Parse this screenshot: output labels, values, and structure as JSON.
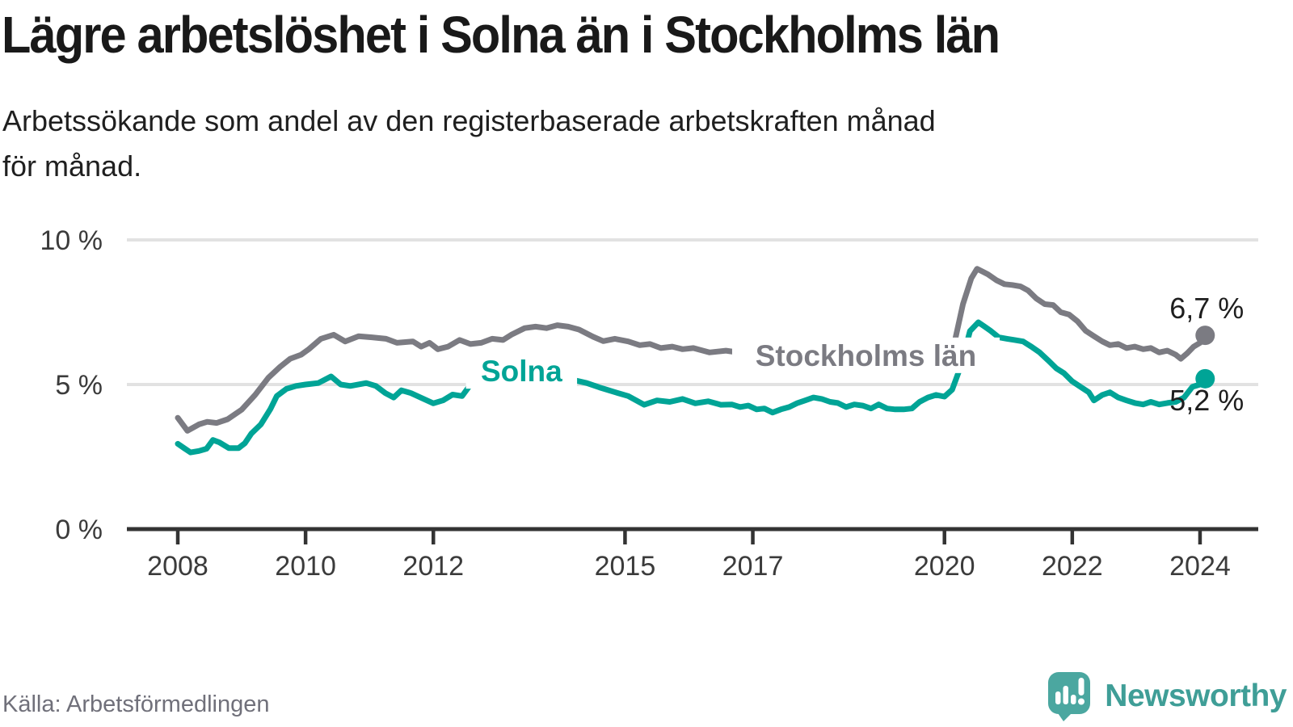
{
  "title": "Lägre arbetslöshet i Solna än i Stockholms län",
  "subtitle": {
    "line1": "Arbetssökande som andel av den registerbaserade arbetskraften månad",
    "line2": "för månad."
  },
  "source": "Källa: Arbetsförmedlingen",
  "branding": {
    "name": "Newsworthy",
    "logo_icon": "speech-bubble-bar-chart-icon",
    "logo_color": "#4BA7A0",
    "text_color": "#3F9E97"
  },
  "chart_data": {
    "type": "line",
    "title": "",
    "xlabel": "",
    "ylabel": "",
    "x_unit": "year (monthly data)",
    "xlim": [
      2007.2,
      2024.92
    ],
    "ylim": [
      0,
      10.5
    ],
    "grid": "horizontal",
    "axis_color": "#333333",
    "gridline_color": "#E2E2E2",
    "tick_label_color": "#3b3b3b",
    "value_label_color": "#1e1e1e",
    "x_ticks": [
      2008,
      2010,
      2012,
      2015,
      2017,
      2020,
      2022,
      2024
    ],
    "x_tick_labels": [
      "2008",
      "2010",
      "2012",
      "2015",
      "2017",
      "2020",
      "2022",
      "2024"
    ],
    "y_ticks": [
      {
        "value": 0,
        "label": "0 %"
      },
      {
        "value": 5,
        "label": "5 %"
      },
      {
        "value": 10,
        "label": "10 %"
      }
    ],
    "legend_position": "inline-labels-on-lines",
    "series": [
      {
        "name": "Stockholms län",
        "color": "#7B7B82",
        "end_value": 6.7,
        "end_label": "6,7 %",
        "end_label_position": "above",
        "label_anchor": {
          "x": 2018.77,
          "y": 6.01
        },
        "points": [
          [
            2008.0,
            3.85
          ],
          [
            2008.15,
            3.4
          ],
          [
            2008.33,
            3.62
          ],
          [
            2008.46,
            3.71
          ],
          [
            2008.61,
            3.67
          ],
          [
            2008.78,
            3.8
          ],
          [
            2009.0,
            4.13
          ],
          [
            2009.21,
            4.64
          ],
          [
            2009.42,
            5.24
          ],
          [
            2009.6,
            5.61
          ],
          [
            2009.76,
            5.89
          ],
          [
            2009.93,
            6.03
          ],
          [
            2010.05,
            6.22
          ],
          [
            2010.24,
            6.58
          ],
          [
            2010.44,
            6.72
          ],
          [
            2010.62,
            6.49
          ],
          [
            2010.83,
            6.67
          ],
          [
            2011.04,
            6.63
          ],
          [
            2011.26,
            6.58
          ],
          [
            2011.43,
            6.44
          ],
          [
            2011.68,
            6.49
          ],
          [
            2011.81,
            6.31
          ],
          [
            2011.94,
            6.44
          ],
          [
            2012.07,
            6.22
          ],
          [
            2012.23,
            6.31
          ],
          [
            2012.41,
            6.54
          ],
          [
            2012.58,
            6.4
          ],
          [
            2012.75,
            6.44
          ],
          [
            2012.92,
            6.58
          ],
          [
            2013.09,
            6.54
          ],
          [
            2013.22,
            6.72
          ],
          [
            2013.43,
            6.95
          ],
          [
            2013.6,
            7.0
          ],
          [
            2013.77,
            6.95
          ],
          [
            2013.94,
            7.05
          ],
          [
            2014.11,
            7.0
          ],
          [
            2014.28,
            6.9
          ],
          [
            2014.5,
            6.65
          ],
          [
            2014.66,
            6.5
          ],
          [
            2014.84,
            6.58
          ],
          [
            2015.05,
            6.49
          ],
          [
            2015.23,
            6.36
          ],
          [
            2015.39,
            6.4
          ],
          [
            2015.56,
            6.26
          ],
          [
            2015.74,
            6.31
          ],
          [
            2015.9,
            6.22
          ],
          [
            2016.07,
            6.26
          ],
          [
            2016.32,
            6.11
          ],
          [
            2016.58,
            6.17
          ],
          [
            2016.8,
            6.1
          ],
          [
            2017.0,
            6.05
          ],
          [
            2017.3,
            6.0
          ],
          [
            2017.6,
            5.95
          ],
          [
            2018.0,
            6.0
          ],
          [
            2018.4,
            6.05
          ],
          [
            2018.7,
            6.17
          ],
          [
            2019.0,
            6.1
          ],
          [
            2019.3,
            6.05
          ],
          [
            2019.6,
            6.1
          ],
          [
            2019.9,
            6.2
          ],
          [
            2020.16,
            6.49
          ],
          [
            2020.29,
            7.78
          ],
          [
            2020.42,
            8.67
          ],
          [
            2020.51,
            9.0
          ],
          [
            2020.6,
            8.9
          ],
          [
            2020.68,
            8.81
          ],
          [
            2020.81,
            8.61
          ],
          [
            2020.94,
            8.47
          ],
          [
            2021.06,
            8.44
          ],
          [
            2021.19,
            8.39
          ],
          [
            2021.31,
            8.25
          ],
          [
            2021.44,
            7.97
          ],
          [
            2021.57,
            7.78
          ],
          [
            2021.7,
            7.75
          ],
          [
            2021.82,
            7.5
          ],
          [
            2021.95,
            7.42
          ],
          [
            2022.08,
            7.19
          ],
          [
            2022.21,
            6.86
          ],
          [
            2022.34,
            6.67
          ],
          [
            2022.47,
            6.49
          ],
          [
            2022.59,
            6.36
          ],
          [
            2022.72,
            6.4
          ],
          [
            2022.85,
            6.26
          ],
          [
            2022.98,
            6.31
          ],
          [
            2023.11,
            6.22
          ],
          [
            2023.23,
            6.26
          ],
          [
            2023.36,
            6.11
          ],
          [
            2023.49,
            6.17
          ],
          [
            2023.62,
            6.03
          ],
          [
            2023.7,
            5.89
          ],
          [
            2023.8,
            6.08
          ],
          [
            2023.9,
            6.31
          ],
          [
            2024.0,
            6.44
          ],
          [
            2024.08,
            6.7
          ]
        ]
      },
      {
        "name": "Solna",
        "color": "#00A496",
        "end_value": 5.2,
        "end_label": "5,2 %",
        "end_label_position": "below",
        "label_anchor": {
          "x": 2013.38,
          "y": 5.47
        },
        "points": [
          [
            2008.0,
            2.95
          ],
          [
            2008.1,
            2.8
          ],
          [
            2008.2,
            2.65
          ],
          [
            2008.33,
            2.7
          ],
          [
            2008.45,
            2.78
          ],
          [
            2008.55,
            3.08
          ],
          [
            2008.65,
            3.0
          ],
          [
            2008.8,
            2.8
          ],
          [
            2008.95,
            2.8
          ],
          [
            2009.05,
            2.97
          ],
          [
            2009.15,
            3.3
          ],
          [
            2009.3,
            3.62
          ],
          [
            2009.45,
            4.15
          ],
          [
            2009.55,
            4.6
          ],
          [
            2009.7,
            4.85
          ],
          [
            2009.85,
            4.95
          ],
          [
            2010.0,
            5.0
          ],
          [
            2010.2,
            5.05
          ],
          [
            2010.4,
            5.28
          ],
          [
            2010.55,
            5.0
          ],
          [
            2010.7,
            4.95
          ],
          [
            2010.95,
            5.05
          ],
          [
            2011.1,
            4.95
          ],
          [
            2011.25,
            4.7
          ],
          [
            2011.38,
            4.55
          ],
          [
            2011.5,
            4.8
          ],
          [
            2011.65,
            4.7
          ],
          [
            2011.85,
            4.5
          ],
          [
            2012.0,
            4.35
          ],
          [
            2012.15,
            4.45
          ],
          [
            2012.3,
            4.65
          ],
          [
            2012.45,
            4.6
          ],
          [
            2012.55,
            4.9
          ],
          [
            2012.68,
            5.3
          ],
          [
            2012.85,
            5.35
          ],
          [
            2013.1,
            5.28
          ],
          [
            2013.35,
            5.4
          ],
          [
            2013.6,
            5.45
          ],
          [
            2013.85,
            5.38
          ],
          [
            2014.05,
            5.3
          ],
          [
            2014.2,
            5.15
          ],
          [
            2014.4,
            5.05
          ],
          [
            2014.6,
            4.9
          ],
          [
            2014.85,
            4.73
          ],
          [
            2015.05,
            4.6
          ],
          [
            2015.3,
            4.3
          ],
          [
            2015.5,
            4.45
          ],
          [
            2015.7,
            4.4
          ],
          [
            2015.9,
            4.5
          ],
          [
            2016.1,
            4.35
          ],
          [
            2016.3,
            4.42
          ],
          [
            2016.5,
            4.3
          ],
          [
            2016.67,
            4.31
          ],
          [
            2016.8,
            4.22
          ],
          [
            2016.93,
            4.27
          ],
          [
            2017.06,
            4.14
          ],
          [
            2017.18,
            4.17
          ],
          [
            2017.31,
            4.03
          ],
          [
            2017.44,
            4.14
          ],
          [
            2017.57,
            4.22
          ],
          [
            2017.7,
            4.36
          ],
          [
            2017.82,
            4.45
          ],
          [
            2017.95,
            4.55
          ],
          [
            2018.08,
            4.5
          ],
          [
            2018.21,
            4.4
          ],
          [
            2018.33,
            4.36
          ],
          [
            2018.46,
            4.22
          ],
          [
            2018.59,
            4.31
          ],
          [
            2018.72,
            4.27
          ],
          [
            2018.85,
            4.17
          ],
          [
            2018.97,
            4.31
          ],
          [
            2019.1,
            4.17
          ],
          [
            2019.23,
            4.14
          ],
          [
            2019.36,
            4.14
          ],
          [
            2019.49,
            4.17
          ],
          [
            2019.61,
            4.4
          ],
          [
            2019.74,
            4.55
          ],
          [
            2019.87,
            4.64
          ],
          [
            2020.0,
            4.58
          ],
          [
            2020.12,
            4.82
          ],
          [
            2020.25,
            5.6
          ],
          [
            2020.4,
            6.85
          ],
          [
            2020.53,
            7.15
          ],
          [
            2020.63,
            7.0
          ],
          [
            2020.72,
            6.86
          ],
          [
            2020.85,
            6.63
          ],
          [
            2020.98,
            6.58
          ],
          [
            2021.1,
            6.54
          ],
          [
            2021.23,
            6.49
          ],
          [
            2021.36,
            6.31
          ],
          [
            2021.49,
            6.11
          ],
          [
            2021.62,
            5.84
          ],
          [
            2021.75,
            5.56
          ],
          [
            2021.87,
            5.39
          ],
          [
            2022.0,
            5.11
          ],
          [
            2022.13,
            4.92
          ],
          [
            2022.26,
            4.73
          ],
          [
            2022.34,
            4.45
          ],
          [
            2022.47,
            4.64
          ],
          [
            2022.59,
            4.73
          ],
          [
            2022.72,
            4.55
          ],
          [
            2022.85,
            4.45
          ],
          [
            2022.98,
            4.36
          ],
          [
            2023.11,
            4.31
          ],
          [
            2023.23,
            4.4
          ],
          [
            2023.36,
            4.31
          ],
          [
            2023.49,
            4.36
          ],
          [
            2023.62,
            4.4
          ],
          [
            2023.75,
            4.55
          ],
          [
            2023.88,
            4.92
          ],
          [
            2024.0,
            5.0
          ],
          [
            2024.08,
            5.2
          ]
        ]
      }
    ]
  }
}
